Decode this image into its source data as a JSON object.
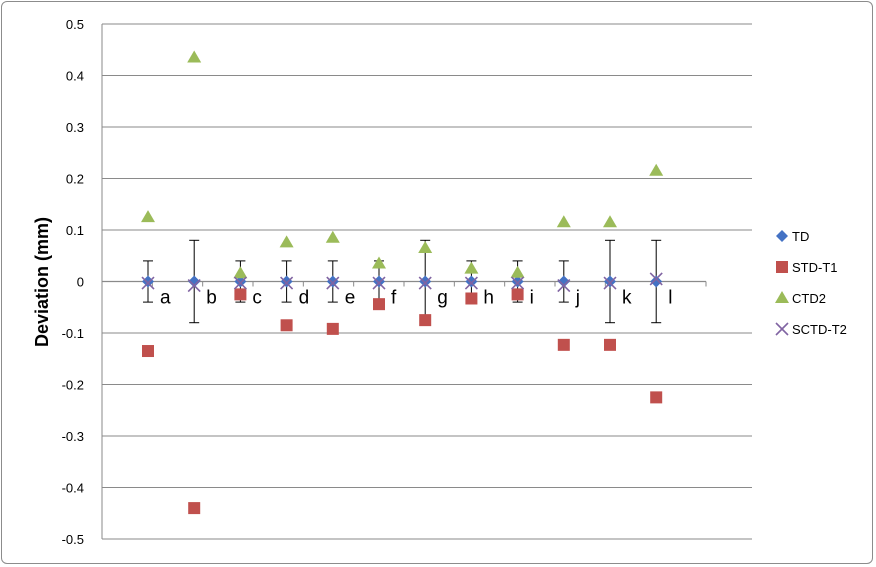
{
  "chart_data": {
    "type": "scatter",
    "title": "",
    "xlabel": "",
    "ylabel": "Deviation  (mm)",
    "ylim": [
      -0.5,
      0.5
    ],
    "yticks": [
      0.5,
      0.4,
      0.3,
      0.2,
      0.1,
      0,
      -0.1,
      -0.2,
      -0.3,
      -0.4,
      -0.5
    ],
    "ytick_labels": [
      "0.5",
      "0.4",
      "0.3",
      "0.2",
      "0.1",
      "0",
      "-0.1",
      "-0.2",
      "-0.3",
      "-0.4",
      "-0.5"
    ],
    "grid": "horizontal",
    "legend_position": "right",
    "categories": [
      "a",
      "b",
      "c",
      "d",
      "e",
      "f",
      "g",
      "h",
      "i",
      "j",
      "k",
      "l"
    ],
    "series": [
      {
        "name": "TD",
        "marker": "diamond",
        "color": "#4472C4",
        "values": [
          0,
          0,
          0,
          0,
          0,
          0,
          0,
          0,
          0,
          0,
          0,
          0
        ],
        "error": [
          0.04,
          0.08,
          0.04,
          0.04,
          0.04,
          0.04,
          0.08,
          0.04,
          0.04,
          0.04,
          0.08,
          0.08
        ]
      },
      {
        "name": "STD-T1",
        "marker": "square",
        "color": "#C0504D",
        "values": [
          -0.135,
          -0.44,
          -0.025,
          -0.085,
          -0.092,
          -0.044,
          -0.075,
          -0.033,
          -0.025,
          -0.123,
          -0.123,
          -0.225
        ]
      },
      {
        "name": "CTD2",
        "marker": "triangle",
        "color": "#9BBB59",
        "values": [
          0.125,
          0.435,
          0.016,
          0.076,
          0.085,
          0.035,
          0.065,
          0.025,
          0.017,
          0.115,
          0.115,
          0.215
        ]
      },
      {
        "name": "SCTD-T2",
        "marker": "x",
        "color": "#8064A2",
        "values": [
          -0.003,
          -0.008,
          -0.003,
          -0.003,
          -0.003,
          -0.003,
          -0.003,
          -0.003,
          -0.003,
          -0.008,
          -0.003,
          0.005
        ]
      }
    ]
  }
}
